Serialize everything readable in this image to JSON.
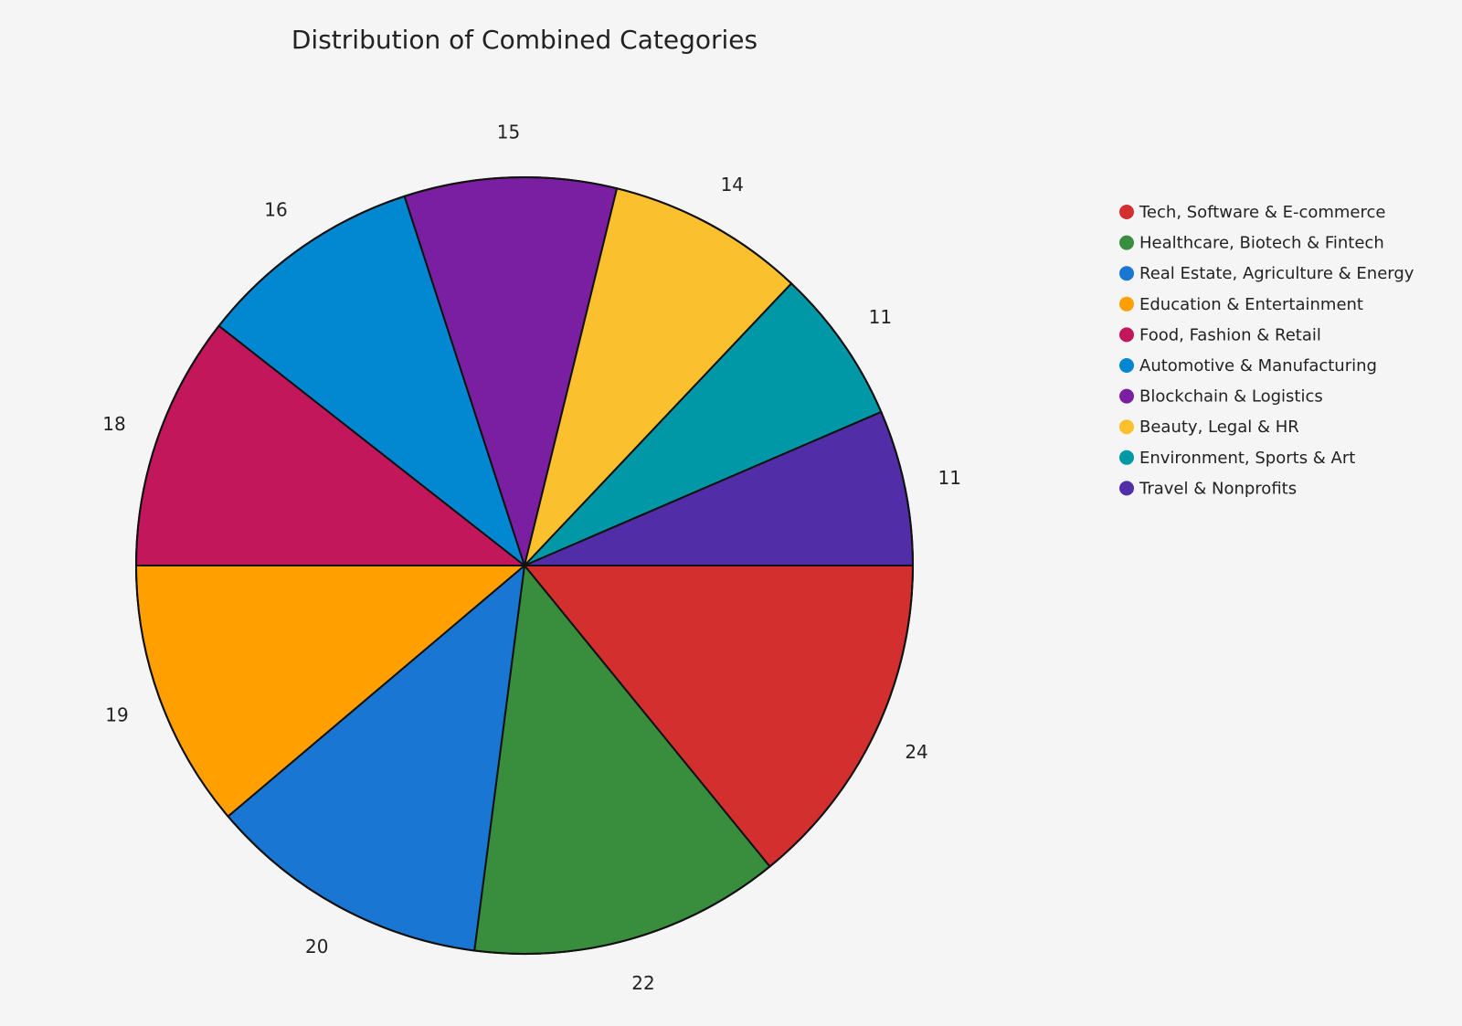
{
  "chart_data": {
    "type": "pie",
    "title": "Distribution of Combined Categories",
    "legend_position": "right",
    "start_angle_deg": 0,
    "direction": "counterclockwise",
    "slices": [
      {
        "name": "Tech, Software & E-commerce",
        "value": 24,
        "color": "#d32f2f"
      },
      {
        "name": "Healthcare, Biotech & Fintech",
        "value": 22,
        "color": "#388e3c"
      },
      {
        "name": "Real Estate, Agriculture & Energy",
        "value": 20,
        "color": "#1976d2"
      },
      {
        "name": "Education & Entertainment",
        "value": 19,
        "color": "#ffa000"
      },
      {
        "name": "Food, Fashion & Retail",
        "value": 18,
        "color": "#c2185b"
      },
      {
        "name": "Automotive & Manufacturing",
        "value": 16,
        "color": "#0288d1"
      },
      {
        "name": "Blockchain & Logistics",
        "value": 15,
        "color": "#7b1fa2"
      },
      {
        "name": "Beauty, Legal & HR",
        "value": 14,
        "color": "#fbc02d"
      },
      {
        "name": "Environment, Sports & Art",
        "value": 11,
        "color": "#0097a7"
      },
      {
        "name": "Travel & Nonprofits",
        "value": 11,
        "color": "#512da8"
      }
    ]
  }
}
